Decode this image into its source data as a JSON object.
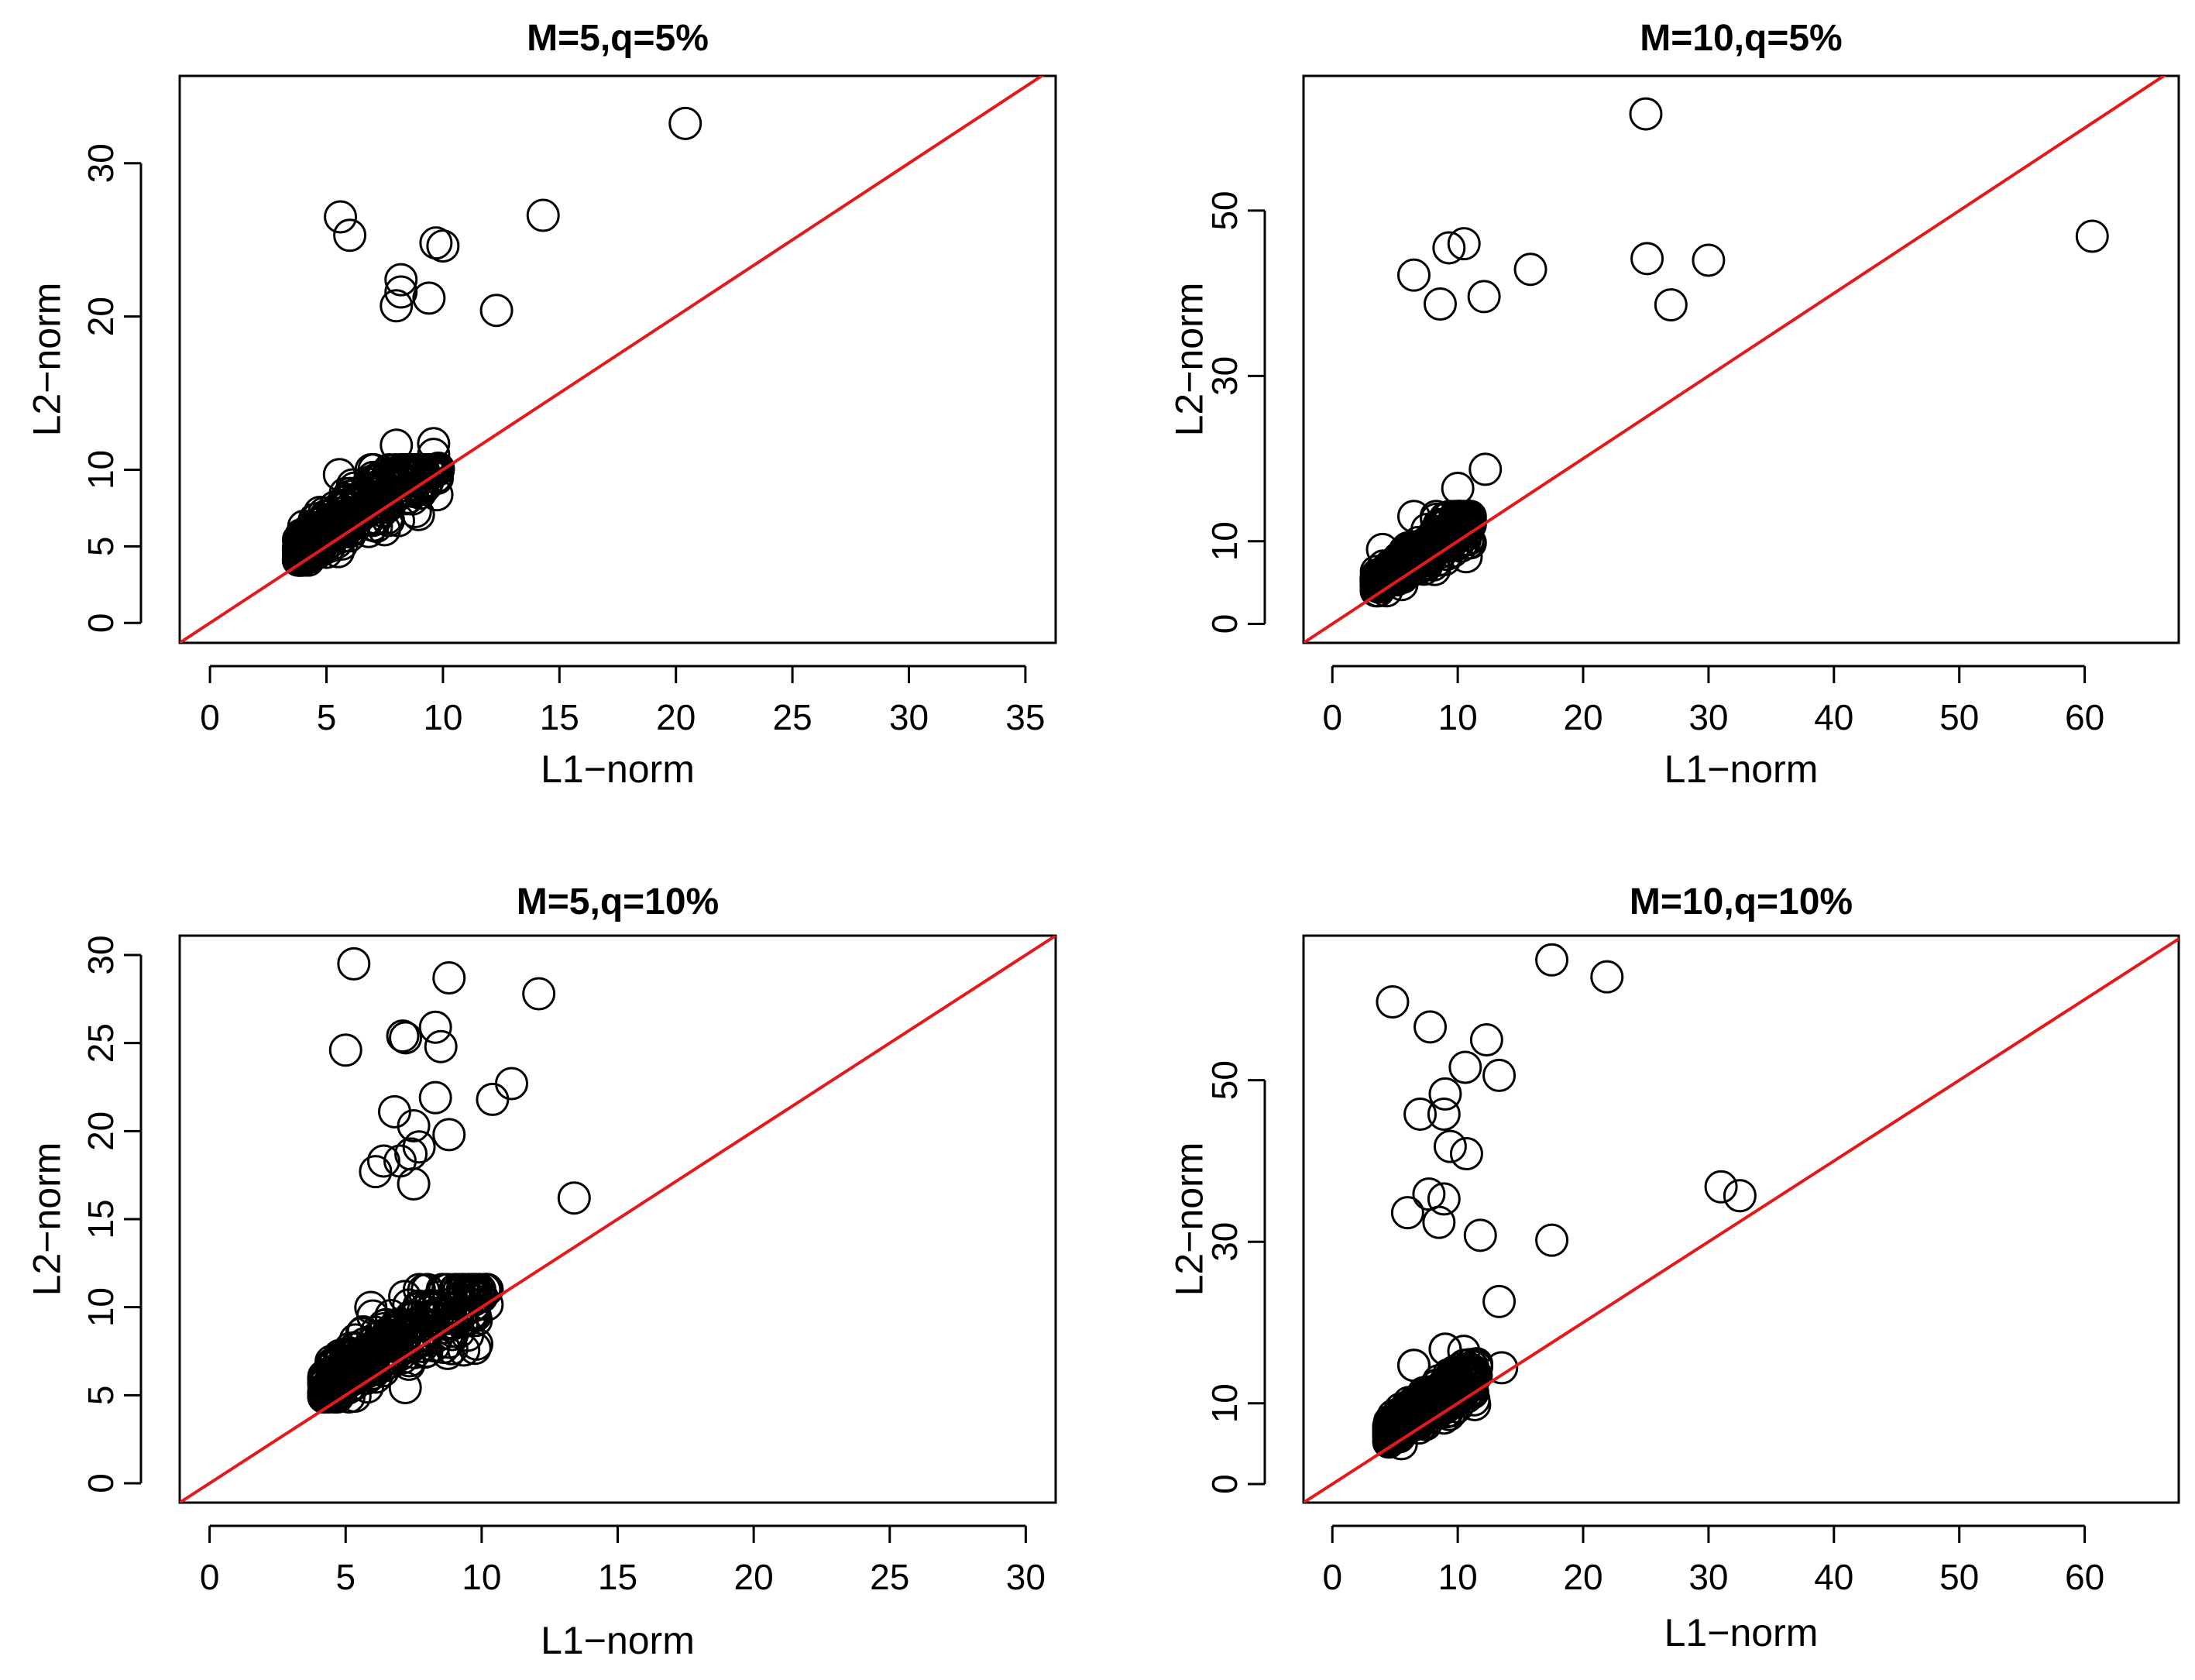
{
  "figure": {
    "description_colors": {
      "points": "#000000",
      "reference_line": "#e31a1c",
      "background": "#ffffff"
    }
  },
  "chart_data": [
    {
      "type": "scatter",
      "title": "M=5,q=5%",
      "xlabel": "L1−norm",
      "ylabel": "L2−norm",
      "xlim": [
        -1.3,
        36.3
      ],
      "ylim": [
        -1.3,
        35.7
      ],
      "xticks": [
        0,
        5,
        10,
        15,
        20,
        25,
        30,
        35
      ],
      "yticks": [
        0,
        5,
        10,
        20,
        30
      ],
      "reference_line": "y = x",
      "outliers": [
        [
          20.4,
          32.6
        ],
        [
          14.3,
          26.6
        ],
        [
          5.6,
          26.5
        ],
        [
          6.0,
          25.3
        ],
        [
          9.7,
          24.8
        ],
        [
          10.0,
          24.6
        ],
        [
          8.2,
          22.4
        ],
        [
          8.2,
          21.6
        ],
        [
          9.4,
          21.2
        ],
        [
          8.0,
          20.7
        ],
        [
          12.3,
          20.4
        ],
        [
          9.6,
          11.7
        ],
        [
          9.6,
          11.0
        ],
        [
          8.0,
          11.6
        ],
        [
          9.8,
          10.1
        ]
      ],
      "cluster": {
        "x_range": [
          3.8,
          9.8
        ],
        "y_range": [
          4.1,
          10.0
        ],
        "points": 320,
        "slope": 1.0,
        "offset": 1.0,
        "outline": [
          [
            3.8,
            4.1
          ],
          [
            4.5,
            5.5
          ],
          [
            5.0,
            7.0
          ],
          [
            6.2,
            8.8
          ],
          [
            7.0,
            9.5
          ],
          [
            8.5,
            9.3
          ],
          [
            9.5,
            9.9
          ]
        ]
      }
    },
    {
      "type": "scatter",
      "title": "M=10,q=5%",
      "xlabel": "L1−norm",
      "ylabel": "L2−norm",
      "xlim": [
        -2.3,
        67.5
      ],
      "ylim": [
        -2.3,
        66.3
      ],
      "xticks": [
        0,
        10,
        20,
        30,
        40,
        50,
        60
      ],
      "yticks": [
        0,
        10,
        30,
        50
      ],
      "reference_line": "y = x",
      "outliers": [
        [
          25.0,
          61.7
        ],
        [
          60.6,
          46.9
        ],
        [
          10.5,
          46.0
        ],
        [
          9.3,
          45.5
        ],
        [
          25.1,
          44.2
        ],
        [
          30.0,
          44.0
        ],
        [
          15.8,
          42.9
        ],
        [
          6.5,
          42.2
        ],
        [
          12.1,
          39.6
        ],
        [
          8.6,
          38.7
        ],
        [
          27.0,
          38.6
        ],
        [
          12.2,
          18.7
        ],
        [
          10.0,
          16.4
        ],
        [
          10.9,
          13.0
        ],
        [
          11.0,
          12.0
        ]
      ],
      "cluster": {
        "x_range": [
          3.5,
          11.0
        ],
        "y_range": [
          4.0,
          13.0
        ],
        "points": 320,
        "slope": 1.0,
        "offset": 1.5,
        "outline": [
          [
            3.5,
            4.0
          ],
          [
            4.0,
            9.0
          ],
          [
            6.5,
            13.0
          ],
          [
            8.5,
            12.0
          ],
          [
            10.5,
            12.5
          ]
        ]
      }
    },
    {
      "type": "scatter",
      "title": "M=5,q=10%",
      "xlabel": "L1−norm",
      "ylabel": "L2−norm",
      "xlim": [
        -1.1,
        31.1
      ],
      "ylim": [
        -1.1,
        31.1
      ],
      "xticks": [
        0,
        5,
        10,
        15,
        20,
        25,
        30
      ],
      "yticks": [
        0,
        5,
        10,
        15,
        20,
        25,
        30
      ],
      "reference_line": "y = x",
      "outliers": [
        [
          5.3,
          29.5
        ],
        [
          8.8,
          28.7
        ],
        [
          12.1,
          27.8
        ],
        [
          8.3,
          25.9
        ],
        [
          7.1,
          25.4
        ],
        [
          7.2,
          25.3
        ],
        [
          8.5,
          24.8
        ],
        [
          5.0,
          24.6
        ],
        [
          11.1,
          22.7
        ],
        [
          10.4,
          21.8
        ],
        [
          8.3,
          21.9
        ],
        [
          6.8,
          21.1
        ],
        [
          7.5,
          20.3
        ],
        [
          8.8,
          19.8
        ],
        [
          7.7,
          19.1
        ],
        [
          7.4,
          18.7
        ],
        [
          7.0,
          18.3
        ],
        [
          6.4,
          18.3
        ],
        [
          6.1,
          17.7
        ],
        [
          7.5,
          17.0
        ],
        [
          13.4,
          16.2
        ]
      ],
      "cluster": {
        "x_range": [
          4.2,
          10.2
        ],
        "y_range": [
          4.9,
          11.0
        ],
        "points": 340,
        "slope": 1.0,
        "offset": 1.2,
        "outline": [
          [
            4.2,
            6.0
          ],
          [
            4.7,
            4.9
          ],
          [
            6.0,
            9.5
          ],
          [
            8.0,
            11.0
          ],
          [
            10.0,
            10.6
          ]
        ]
      }
    },
    {
      "type": "scatter",
      "title": "M=10,q=10%",
      "xlabel": "L1−norm",
      "ylabel": "L2−norm",
      "xlim": [
        -2.3,
        67.5
      ],
      "ylim": [
        -2.3,
        67.9
      ],
      "xticks": [
        0,
        10,
        20,
        30,
        40,
        50,
        60
      ],
      "yticks": [
        0,
        10,
        30,
        50
      ],
      "reference_line": "y = x",
      "outliers": [
        [
          17.5,
          64.9
        ],
        [
          21.9,
          62.8
        ],
        [
          4.8,
          59.7
        ],
        [
          7.8,
          56.6
        ],
        [
          12.3,
          55.0
        ],
        [
          10.6,
          51.6
        ],
        [
          13.3,
          50.6
        ],
        [
          9.0,
          48.3
        ],
        [
          7.0,
          45.8
        ],
        [
          8.9,
          45.8
        ],
        [
          9.4,
          41.8
        ],
        [
          10.7,
          40.9
        ],
        [
          31.0,
          36.8
        ],
        [
          32.5,
          35.7
        ],
        [
          7.7,
          35.9
        ],
        [
          8.9,
          35.3
        ],
        [
          6.0,
          33.6
        ],
        [
          8.5,
          32.4
        ],
        [
          11.8,
          30.8
        ],
        [
          17.5,
          30.2
        ],
        [
          13.3,
          22.6
        ],
        [
          13.5,
          14.4
        ],
        [
          11.0,
          14.8
        ],
        [
          9.0,
          16.7
        ],
        [
          6.5,
          14.7
        ]
      ],
      "cluster": {
        "x_range": [
          4.5,
          11.5
        ],
        "y_range": [
          5.0,
          16.7
        ],
        "points": 360,
        "slope": 1.0,
        "offset": 2.0,
        "outline": [
          [
            4.5,
            6.0
          ],
          [
            5.5,
            5.0
          ],
          [
            6.5,
            14.7
          ],
          [
            9.0,
            16.7
          ],
          [
            11.5,
            14.5
          ]
        ]
      }
    }
  ]
}
